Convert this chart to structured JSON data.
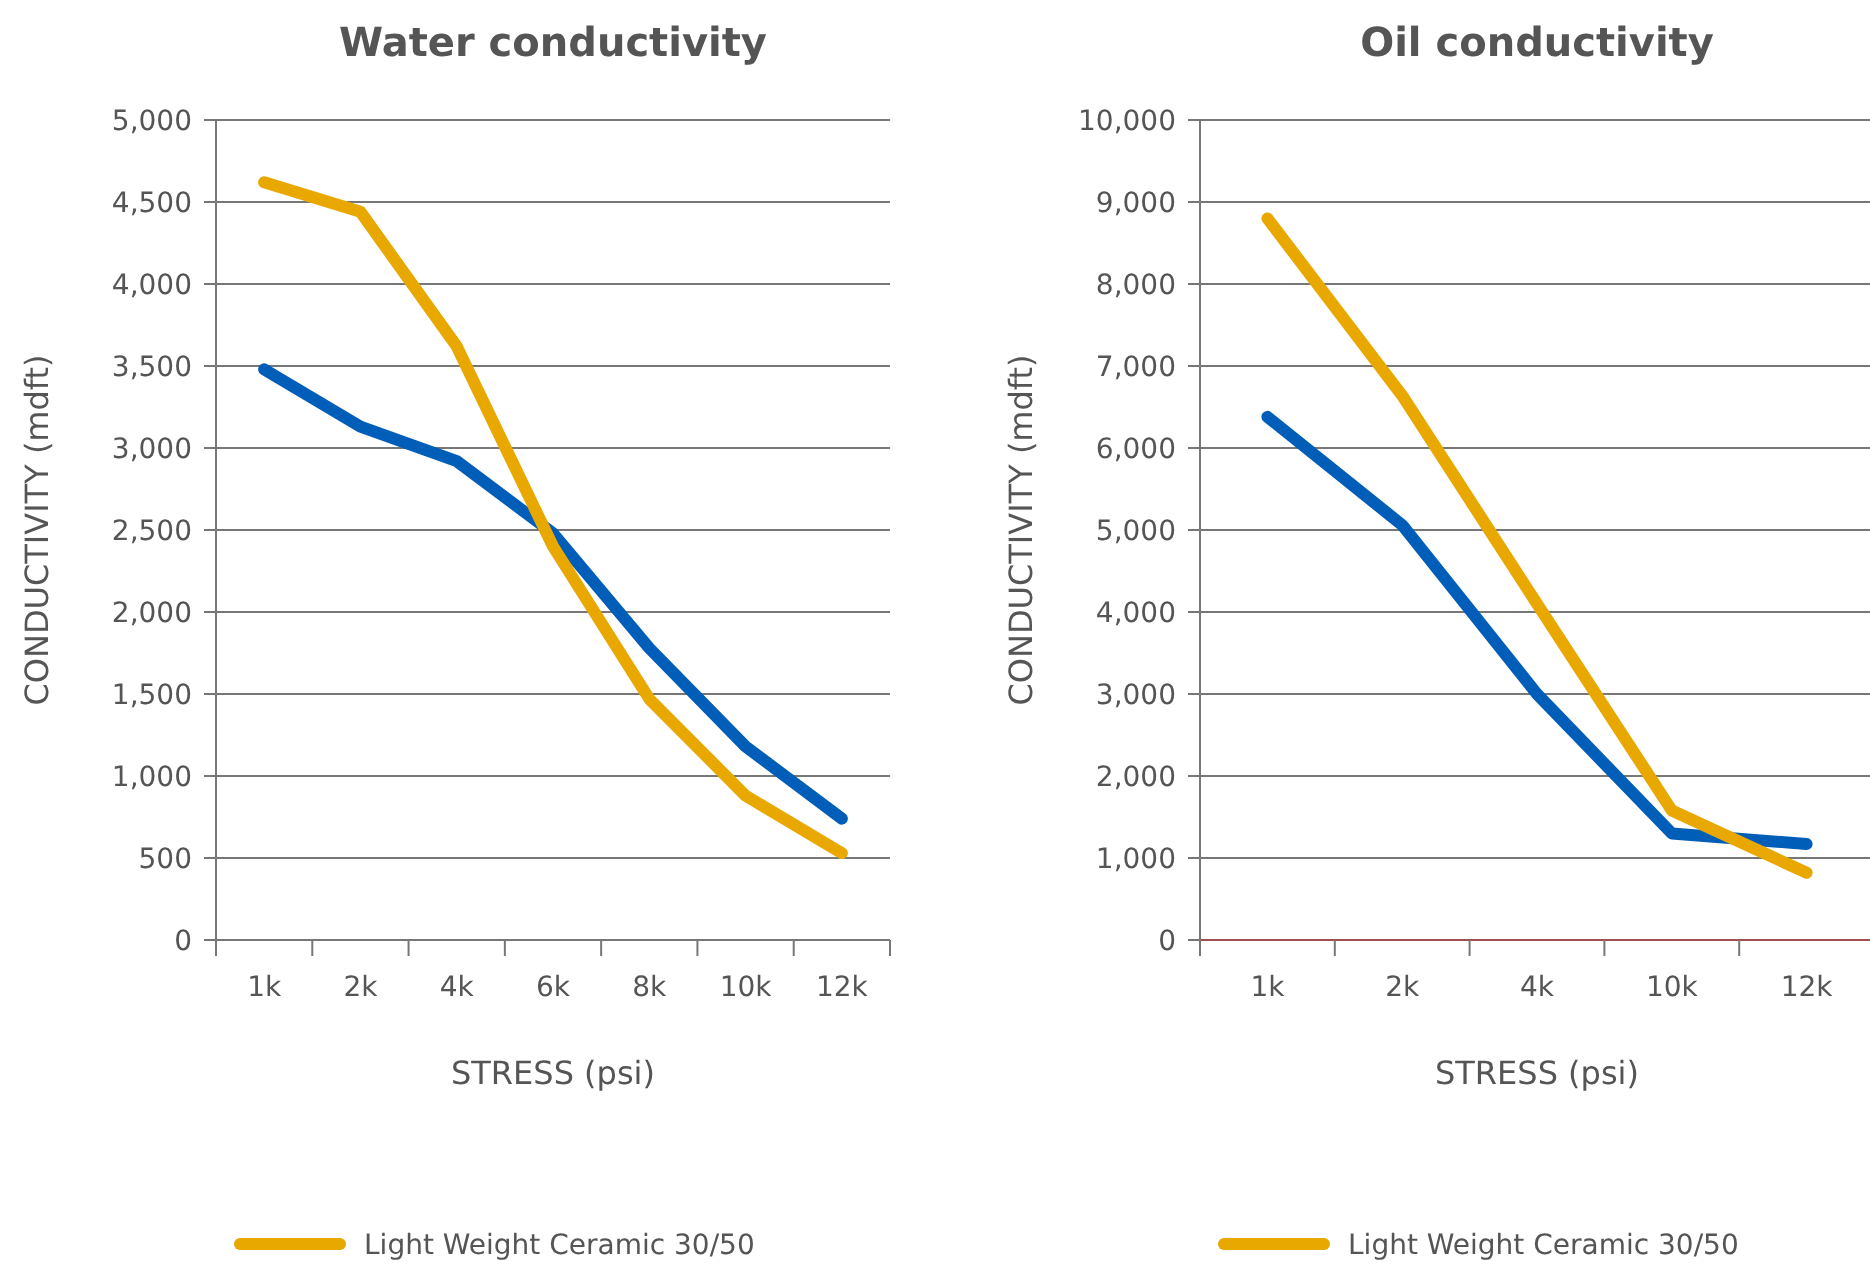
{
  "chart_data": [
    {
      "type": "line",
      "title": "Water conductivity",
      "xlabel": "STRESS (psi)",
      "ylabel": "CONDUCTIVITY (mdft)",
      "categories": [
        "1k",
        "2k",
        "4k",
        "6k",
        "8k",
        "10k",
        "12k"
      ],
      "series": [
        {
          "color": "#005eb8",
          "values": [
            3480,
            3130,
            2920,
            2480,
            1780,
            1180,
            740
          ]
        },
        {
          "name": "Light Weight Ceramic 30/50",
          "color": "#e8a800",
          "values": [
            4620,
            4440,
            3620,
            2400,
            1470,
            880,
            530
          ]
        }
      ],
      "ylim": [
        0,
        5000
      ],
      "yticks": [
        0,
        {
          "value": 500,
          "label": "500"
        },
        {
          "value": 1000,
          "label": "1,000"
        },
        {
          "value": 1500,
          "label": "1,500"
        },
        {
          "value": 2000,
          "label": "2,000"
        },
        {
          "value": 2500,
          "label": "2,500"
        },
        {
          "value": 3000,
          "label": "3,000"
        },
        {
          "value": 3500,
          "label": "3,500"
        },
        {
          "value": 4000,
          "label": "4,000"
        },
        {
          "value": 4500,
          "label": "4,500"
        },
        {
          "value": 5000,
          "label": "5,000"
        }
      ],
      "grid": "y",
      "legend": "bottom",
      "marker": "none",
      "line_style": "solid"
    },
    {
      "type": "line",
      "title": "Oil conductivity",
      "xlabel": "STRESS (psi)",
      "ylabel": "CONDUCTIVITY (mdft)",
      "categories": [
        "1k",
        "2k",
        "4k",
        "10k",
        "12k"
      ],
      "series": [
        {
          "color": "#005eb8",
          "values": [
            6380,
            5060,
            3000,
            1300,
            1170
          ]
        },
        {
          "name": "Light Weight Ceramic 30/50",
          "color": "#e8a800",
          "values": [
            8800,
            6640,
            4100,
            1580,
            820
          ]
        }
      ],
      "ylim": [
        0,
        10000
      ],
      "yticks": [
        0,
        {
          "value": 1000,
          "label": "1,000"
        },
        {
          "value": 2000,
          "label": "2,000"
        },
        {
          "value": 3000,
          "label": "3,000"
        },
        {
          "value": 4000,
          "label": "4,000"
        },
        {
          "value": 5000,
          "label": "5,000"
        },
        {
          "value": 6000,
          "label": "6,000"
        },
        {
          "value": 7000,
          "label": "7,000"
        },
        {
          "value": 8000,
          "label": "8,000"
        },
        {
          "value": 9000,
          "label": "9,000"
        },
        {
          "value": 10000,
          "label": "10,000"
        }
      ],
      "grid": "y",
      "legend": "bottom",
      "marker": "none",
      "line_style": "solid"
    }
  ]
}
